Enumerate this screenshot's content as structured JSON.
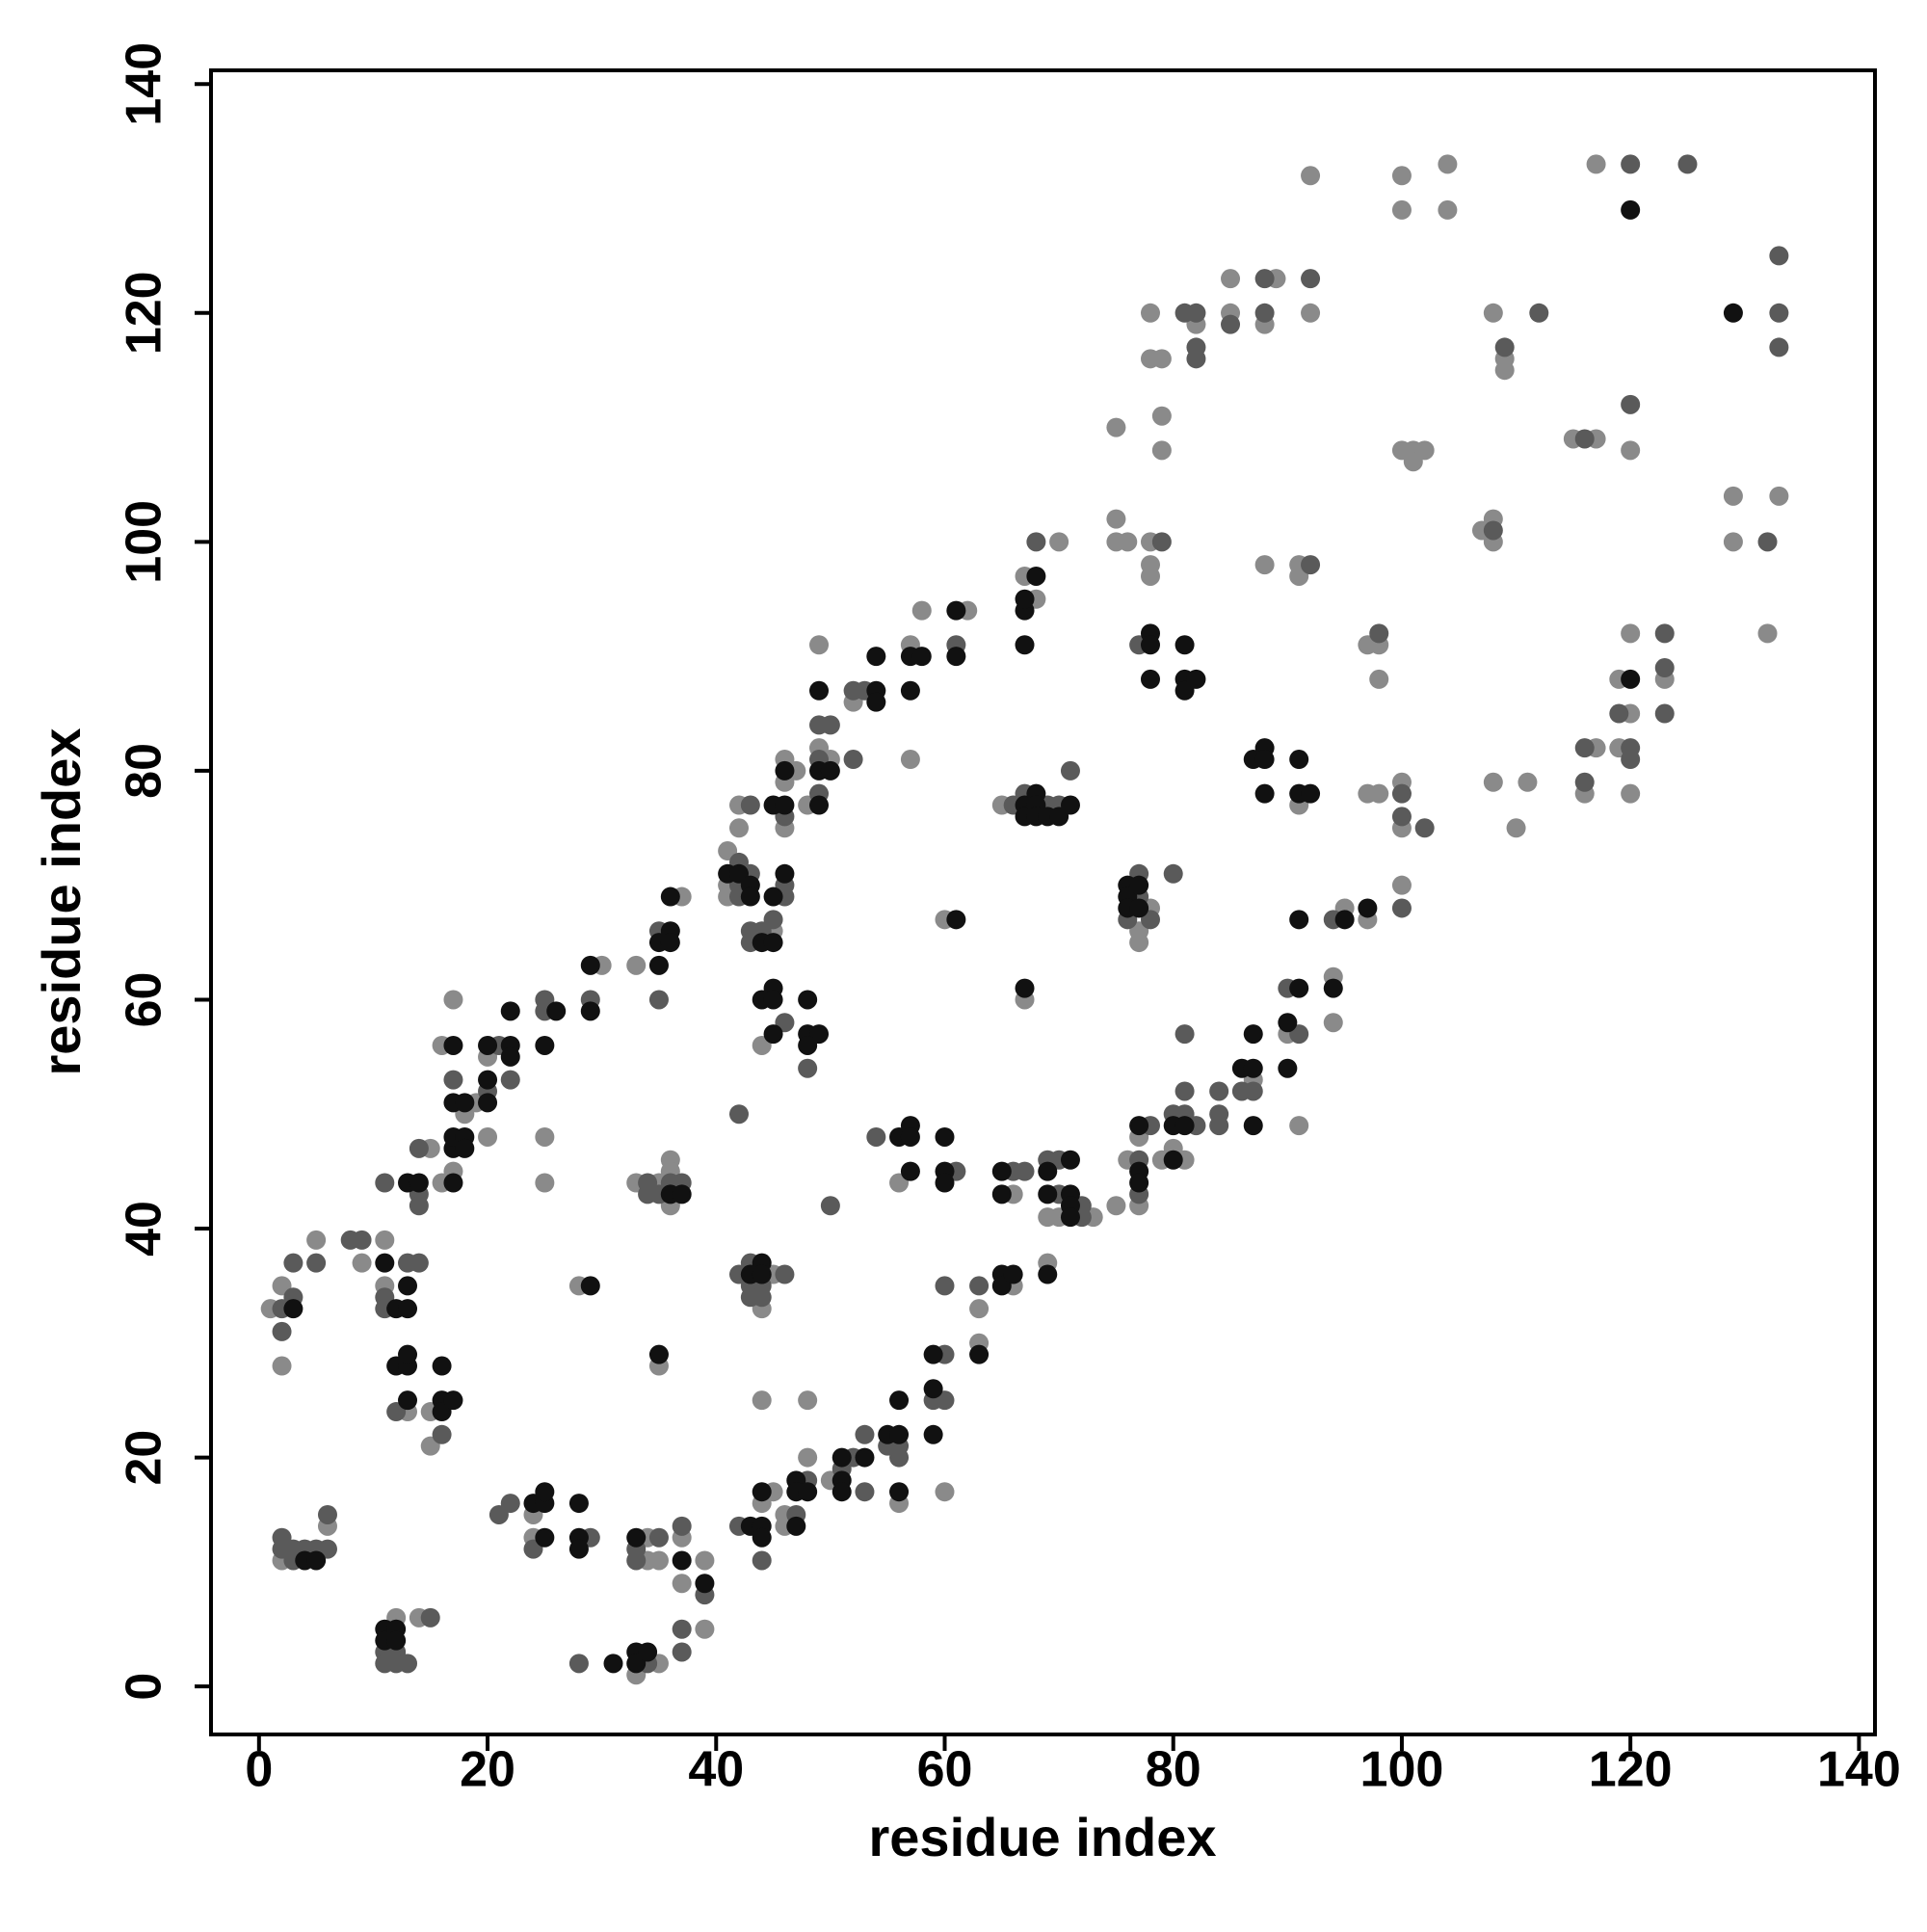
{
  "chart_data": {
    "type": "scatter",
    "xlabel": "residue index",
    "ylabel": "residue index",
    "xlim": [
      -4.2,
      141.4
    ],
    "ylim": [
      -4.2,
      141.2
    ],
    "xticks": [
      0,
      20,
      40,
      60,
      80,
      100,
      120,
      140
    ],
    "yticks": [
      0,
      20,
      40,
      60,
      80,
      100,
      120,
      140
    ],
    "series": [
      {
        "color": "#8a8a8a",
        "x": [
          1,
          2,
          2,
          5,
          2,
          6,
          9,
          11,
          11,
          15,
          13,
          15,
          15,
          12,
          14,
          16,
          17,
          18,
          19,
          20,
          16,
          17,
          20,
          25,
          25,
          24,
          24,
          30,
          28,
          34,
          34,
          35,
          33,
          35,
          37,
          37,
          39,
          39,
          33,
          37,
          35,
          33,
          35,
          36,
          36,
          36,
          41,
          41,
          41,
          42,
          42,
          45,
          46,
          46,
          46,
          47,
          44,
          44,
          45,
          44,
          48,
          44,
          45,
          46,
          46,
          48,
          50,
          56,
          48,
          50,
          49,
          49,
          52,
          57,
          58,
          57,
          62,
          56,
          60,
          60,
          63,
          63,
          66,
          66,
          67,
          65,
          67,
          68,
          70,
          69,
          69,
          70,
          73,
          75,
          76,
          77,
          77,
          79,
          80,
          81,
          87,
          90,
          91,
          94,
          94,
          95,
          97,
          100,
          77,
          77,
          78,
          75,
          75,
          75,
          76,
          78,
          78,
          78,
          78,
          78,
          79,
          79,
          79,
          82,
          85,
          85,
          88,
          89,
          92,
          92,
          91,
          88,
          91,
          91,
          97,
          98,
          98,
          97,
          98,
          100,
          100,
          100,
          101,
          101,
          102,
          100,
          100,
          104,
          104,
          107,
          108,
          108,
          108,
          109,
          109,
          108,
          110,
          111,
          115,
          117,
          117,
          120,
          116,
          117,
          119,
          119,
          120,
          120,
          120,
          123,
          129,
          129,
          132,
          133
        ],
        "values": [
          33,
          35,
          28,
          39,
          11,
          14,
          37,
          39,
          35,
          47,
          24,
          24,
          21,
          6,
          6,
          44,
          45,
          50,
          51,
          48,
          56,
          60,
          55,
          48,
          44,
          15,
          13,
          63,
          35,
          13,
          11,
          11,
          1,
          2,
          13,
          9,
          11,
          5,
          63,
          69,
          28,
          44,
          44,
          46,
          45,
          42,
          73,
          70,
          69,
          77,
          75,
          66,
          75,
          79,
          81,
          80,
          56,
          33,
          36,
          25,
          25,
          16,
          17,
          14,
          15,
          20,
          18,
          16,
          77,
          81,
          82,
          91,
          86,
          91,
          94,
          81,
          94,
          44,
          67,
          17,
          33,
          30,
          35,
          43,
          60,
          77,
          97,
          95,
          100,
          41,
          37,
          41,
          41,
          42,
          46,
          42,
          48,
          46,
          47,
          46,
          53,
          57,
          49,
          62,
          58,
          68,
          67,
          70,
          66,
          65,
          68,
          110,
          102,
          100,
          100,
          100,
          98,
          97,
          120,
          116,
          116,
          111,
          108,
          119,
          123,
          120,
          119,
          123,
          120,
          132,
          77,
          98,
          98,
          97,
          91,
          91,
          88,
          78,
          78,
          79,
          75,
          108,
          108,
          107,
          108,
          132,
          129,
          133,
          129,
          101,
          102,
          100,
          120,
          116,
          115,
          79,
          75,
          79,
          109,
          109,
          133,
          108,
          78,
          82,
          88,
          82,
          92,
          85,
          78,
          88,
          104,
          100,
          92,
          104
        ]
      },
      {
        "color": "#5a5a5a",
        "x": [
          2,
          3,
          2,
          3,
          5,
          2,
          2,
          3,
          3,
          4,
          5,
          6,
          6,
          8,
          9,
          11,
          11,
          11,
          13,
          14,
          14,
          14,
          14,
          12,
          16,
          11,
          11,
          12,
          12,
          13,
          15,
          20,
          17,
          21,
          22,
          25,
          25,
          21,
          22,
          24,
          29,
          28,
          29,
          33,
          33,
          35,
          34,
          37,
          37,
          37,
          39,
          35,
          35,
          34,
          34,
          35,
          36,
          37,
          42,
          42,
          42,
          43,
          43,
          43,
          43,
          44,
          45,
          46,
          46,
          46,
          46,
          48,
          42,
          42,
          43,
          43,
          44,
          44,
          46,
          43,
          42,
          44,
          47,
          48,
          51,
          52,
          53,
          53,
          55,
          56,
          56,
          49,
          49,
          49,
          50,
          52,
          53,
          52,
          61,
          50,
          54,
          61,
          59,
          60,
          60,
          60,
          63,
          66,
          67,
          66,
          67,
          69,
          70,
          71,
          68,
          69,
          70,
          70,
          72,
          72,
          77,
          77,
          78,
          80,
          81,
          81,
          81,
          82,
          84,
          84,
          84,
          86,
          87,
          90,
          91,
          94,
          100,
          76,
          77,
          77,
          78,
          80,
          77,
          79,
          81,
          82,
          82,
          82,
          85,
          88,
          88,
          92,
          92,
          98,
          100,
          100,
          102,
          108,
          109,
          112,
          116,
          120,
          120,
          116,
          116,
          119,
          120,
          120,
          123,
          123,
          123,
          125,
          132,
          133,
          133,
          133
        ],
        "values": [
          33,
          34,
          31,
          37,
          37,
          13,
          12,
          12,
          11,
          12,
          12,
          12,
          15,
          39,
          39,
          44,
          34,
          33,
          37,
          37,
          43,
          42,
          47,
          24,
          22,
          3,
          2,
          3,
          2,
          2,
          6,
          52,
          53,
          56,
          53,
          59,
          60,
          15,
          16,
          12,
          13,
          2,
          60,
          12,
          11,
          13,
          2,
          14,
          5,
          3,
          8,
          66,
          60,
          44,
          43,
          43,
          44,
          44,
          72,
          70,
          69,
          71,
          77,
          66,
          65,
          66,
          67,
          69,
          70,
          76,
          58,
          54,
          50,
          36,
          37,
          35,
          35,
          34,
          36,
          34,
          14,
          11,
          15,
          18,
          19,
          20,
          22,
          17,
          21,
          21,
          20,
          78,
          81,
          84,
          84,
          87,
          87,
          81,
          91,
          42,
          48,
          45,
          25,
          29,
          25,
          35,
          35,
          45,
          45,
          77,
          78,
          77,
          77,
          80,
          100,
          46,
          46,
          43,
          42,
          41,
          46,
          43,
          49,
          50,
          50,
          52,
          57,
          49,
          52,
          50,
          49,
          52,
          52,
          61,
          57,
          67,
          68,
          67,
          71,
          69,
          67,
          71,
          91,
          100,
          120,
          120,
          117,
          116,
          119,
          123,
          120,
          123,
          98,
          92,
          78,
          76,
          75,
          101,
          117,
          120,
          109,
          133,
          112,
          82,
          79,
          85,
          82,
          81,
          92,
          89,
          85,
          133,
          100,
          125,
          120,
          117
        ]
      },
      {
        "color": "#111111",
        "x": [
          3,
          4,
          5,
          11,
          12,
          13,
          13,
          13,
          14,
          12,
          13,
          13,
          13,
          16,
          16,
          16,
          17,
          11,
          11,
          12,
          12,
          17,
          17,
          17,
          18,
          18,
          17,
          18,
          20,
          17,
          20,
          20,
          22,
          22,
          22,
          25,
          26,
          24,
          25,
          25,
          25,
          28,
          28,
          28,
          31,
          29,
          29,
          29,
          33,
          33,
          33,
          34,
          37,
          39,
          35,
          35,
          36,
          36,
          36,
          35,
          36,
          37,
          41,
          42,
          43,
          43,
          44,
          45,
          45,
          46,
          45,
          46,
          46,
          44,
          45,
          45,
          45,
          48,
          48,
          49,
          48,
          43,
          44,
          44,
          43,
          44,
          44,
          44,
          47,
          47,
          47,
          48,
          51,
          51,
          51,
          53,
          55,
          56,
          56,
          56,
          49,
          49,
          50,
          49,
          54,
          54,
          54,
          57,
          57,
          58,
          61,
          61,
          56,
          57,
          57,
          57,
          60,
          60,
          60,
          61,
          59,
          59,
          59,
          63,
          65,
          65,
          66,
          65,
          65,
          67,
          67,
          67,
          68,
          68,
          68,
          69,
          70,
          71,
          67,
          67,
          67,
          68,
          69,
          69,
          69,
          71,
          71,
          71,
          71,
          77,
          77,
          77,
          80,
          80,
          81,
          86,
          87,
          87,
          87,
          90,
          90,
          91,
          91,
          94,
          95,
          97,
          76,
          76,
          76,
          77,
          77,
          78,
          78,
          78,
          81,
          81,
          81,
          82,
          87,
          88,
          88,
          88,
          91,
          91,
          92,
          120,
          120,
          129
        ],
        "values": [
          33,
          11,
          11,
          37,
          33,
          33,
          35,
          44,
          44,
          28,
          28,
          29,
          25,
          25,
          24,
          28,
          25,
          5,
          4,
          5,
          4,
          44,
          47,
          48,
          48,
          47,
          51,
          51,
          51,
          56,
          53,
          56,
          56,
          55,
          59,
          56,
          59,
          16,
          16,
          17,
          13,
          16,
          13,
          12,
          2,
          59,
          63,
          35,
          13,
          3,
          2,
          3,
          11,
          9,
          63,
          65,
          66,
          65,
          69,
          29,
          43,
          43,
          71,
          71,
          70,
          69,
          65,
          65,
          69,
          71,
          77,
          77,
          80,
          60,
          61,
          60,
          57,
          60,
          57,
          57,
          56,
          36,
          37,
          36,
          14,
          17,
          14,
          13,
          14,
          18,
          17,
          17,
          18,
          17,
          20,
          20,
          22,
          22,
          17,
          25,
          77,
          80,
          80,
          87,
          87,
          86,
          90,
          87,
          90,
          90,
          94,
          90,
          48,
          49,
          48,
          45,
          48,
          45,
          44,
          67,
          29,
          26,
          22,
          29,
          36,
          35,
          36,
          45,
          43,
          61,
          77,
          76,
          78,
          77,
          76,
          76,
          76,
          77,
          91,
          94,
          95,
          97,
          45,
          43,
          36,
          46,
          43,
          42,
          41,
          45,
          44,
          49,
          49,
          46,
          49,
          54,
          54,
          57,
          49,
          54,
          58,
          61,
          67,
          61,
          67,
          68,
          70,
          69,
          68,
          70,
          68,
          92,
          91,
          88,
          91,
          88,
          87,
          88,
          81,
          82,
          81,
          78,
          81,
          78,
          78,
          129,
          88,
          120
        ]
      }
    ]
  }
}
